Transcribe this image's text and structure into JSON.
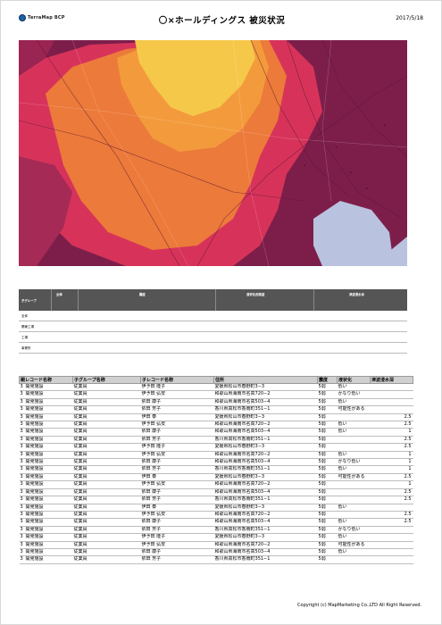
{
  "header": {
    "logo_text": "TerraMap BCP",
    "title": "〇×ホールディングス 被災状況",
    "date": "2017/5/18"
  },
  "summary": {
    "col_group": "子グループ",
    "col_all": "全体",
    "row_labels": [
      "全体",
      "関東工場",
      "工場",
      "事業所"
    ],
    "group_labels": [
      "震度",
      "液状化危険度",
      "津波浸水深"
    ]
  },
  "detail": {
    "headers": [
      "親レコード名称",
      "子グループ名称",
      "子レコード名称",
      "住所",
      "震度",
      "液状化",
      "津波浸水深"
    ],
    "rows": [
      [
        "3",
        "開発施設",
        "従業員",
        "伊予田 隆子",
        "愛媛県松山市春野町3−3",
        "5弱",
        "低い",
        ""
      ],
      [
        "3",
        "開発施設",
        "従業員",
        "伊予田 弘安",
        "和歌山県海南市名高720−2",
        "5弱",
        "かなり低い",
        ""
      ],
      [
        "3",
        "開発施設",
        "従業員",
        "依田 康子",
        "和歌山県海南市名高503−4",
        "5弱",
        "低い",
        ""
      ],
      [
        "3",
        "開発施設",
        "従業員",
        "依田 芳子",
        "香川県高松市香南町351−1",
        "5弱",
        "可能性がある",
        ""
      ],
      [
        "3",
        "開発施設",
        "従業員",
        "伊田 泰",
        "愛媛県松山市春野町3−3",
        "5弱",
        "",
        "2.5"
      ],
      [
        "3",
        "開発施設",
        "従業員",
        "伊予田 弘安",
        "和歌山県海南市名高720−2",
        "5弱",
        "低い",
        "2.5"
      ],
      [
        "3",
        "開発施設",
        "従業員",
        "依田 康子",
        "和歌山県海南市名高503−4",
        "5弱",
        "低い",
        "1"
      ],
      [
        "3",
        "開発施設",
        "従業員",
        "依田 芳子",
        "香川県高松市香南町351−1",
        "5弱",
        "",
        "2.5"
      ],
      [
        "3",
        "開発施設",
        "従業員",
        "伊予田 隆子",
        "愛媛県松山市春野町3−3",
        "5弱",
        "",
        "2.5"
      ],
      [
        "3",
        "開発施設",
        "従業員",
        "伊予田 弘安",
        "和歌山県海南市名高720−2",
        "5弱",
        "低い",
        "1"
      ],
      [
        "3",
        "開発施設",
        "従業員",
        "依田 康子",
        "和歌山県海南市名高503−4",
        "5弱",
        "かなり低い",
        "1"
      ],
      [
        "3",
        "開発施設",
        "従業員",
        "依田 芳子",
        "香川県高松市香南町351−1",
        "5弱",
        "低い",
        "1"
      ],
      [
        "3",
        "開発施設",
        "従業員",
        "伊田 泰",
        "愛媛県松山市春野町3−3",
        "5弱",
        "可能性がある",
        "2.5"
      ],
      [
        "3",
        "開発施設",
        "従業員",
        "伊予田 弘安",
        "和歌山県海南市名高720−2",
        "5弱",
        "",
        "1"
      ],
      [
        "3",
        "開発施設",
        "従業員",
        "依田 康子",
        "和歌山県海南市名高503−4",
        "5弱",
        "",
        "2.5"
      ],
      [
        "3",
        "開発施設",
        "従業員",
        "依田 芳子",
        "香川県高松市香南町351−1",
        "5弱",
        "",
        "2.5"
      ],
      [
        "3",
        "開発施設",
        "従業員",
        "伊田 泰",
        "愛媛県松山市春野町3−3",
        "5弱",
        "低い",
        ""
      ],
      [
        "3",
        "開発施設",
        "従業員",
        "伊予田 弘安",
        "和歌山県海南市名高720−2",
        "5弱",
        "",
        "2.5"
      ],
      [
        "3",
        "開発施設",
        "従業員",
        "依田 康子",
        "和歌山県海南市名高503−4",
        "5弱",
        "低い",
        "2.5"
      ],
      [
        "3",
        "開発施設",
        "従業員",
        "依田 芳子",
        "香川県高松市香南町351−1",
        "5弱",
        "かなり低い",
        ""
      ],
      [
        "3",
        "開発施設",
        "従業員",
        "伊予田 隆子",
        "愛媛県松山市春野町3−3",
        "5弱",
        "低い",
        ""
      ],
      [
        "3",
        "開発施設",
        "従業員",
        "伊予田 弘安",
        "和歌山県海南市名高720−2",
        "5弱",
        "可能性がある",
        ""
      ],
      [
        "3",
        "開発施設",
        "従業員",
        "依田 康子",
        "和歌山県海南市名高503−4",
        "5弱",
        "低い",
        ""
      ],
      [
        "3",
        "開発施設",
        "従業員",
        "依田 芳子",
        "香川県高松市香南町351−1",
        "5弱",
        "",
        ""
      ]
    ]
  },
  "footer": {
    "copyright": "Copyright (c) MapMarketing Co.,LTD All Right Reserved."
  },
  "colors": {
    "hazard_high": "#f6c84a",
    "hazard_mid": "#ec7a3a",
    "hazard_low": "#d7335a",
    "hazard_base": "#7d1e4a",
    "water": "#b9c2de"
  }
}
